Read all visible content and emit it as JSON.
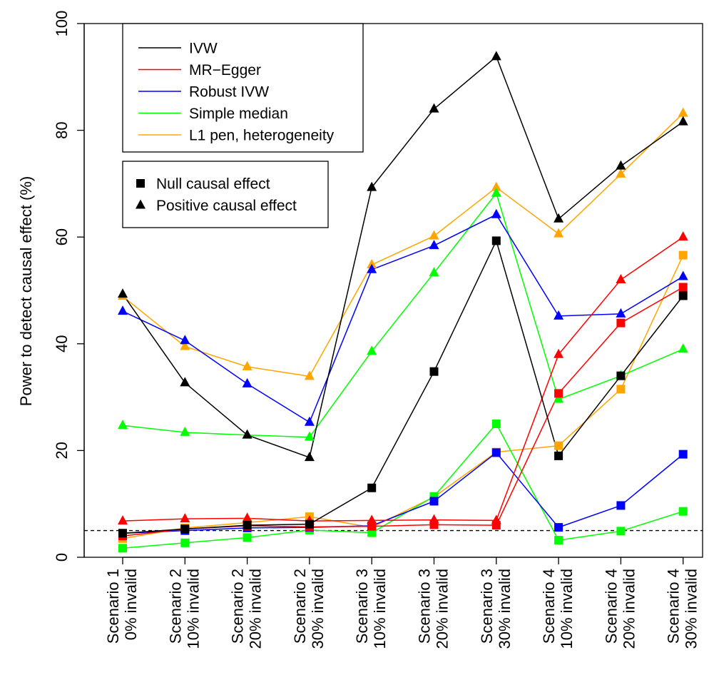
{
  "chart_data": {
    "type": "line",
    "title": "",
    "xlabel": "",
    "ylabel": "Power to detect causal effect (%)",
    "ylim": [
      0,
      100
    ],
    "yticks": [
      0,
      20,
      40,
      60,
      80,
      100
    ],
    "reference_line": 5,
    "categories": [
      [
        "Scenario 1",
        "0% invalid"
      ],
      [
        "Scenario 2",
        "10% invalid"
      ],
      [
        "Scenario 2",
        "20% invalid"
      ],
      [
        "Scenario 2",
        "30% invalid"
      ],
      [
        "Scenario 3",
        "10% invalid"
      ],
      [
        "Scenario 3",
        "20% invalid"
      ],
      [
        "Scenario 3",
        "30% invalid"
      ],
      [
        "Scenario 4",
        "10% invalid"
      ],
      [
        "Scenario 4",
        "20% invalid"
      ],
      [
        "Scenario 4",
        "30% invalid"
      ]
    ],
    "legend_position": "top-left",
    "methods": [
      {
        "name": "IVW",
        "color": "#000000",
        "null_effect": [
          4.5,
          5.3,
          6.0,
          6.2,
          13.0,
          34.8,
          59.3,
          19.0,
          34.0,
          49.0
        ],
        "positive_effect": [
          49.3,
          32.7,
          22.9,
          18.7,
          69.3,
          84.0,
          93.8,
          63.4,
          73.3,
          81.6
        ]
      },
      {
        "name": "MR−Egger",
        "color": "#ff0000",
        "null_effect": [
          4.0,
          5.3,
          5.9,
          5.7,
          5.8,
          6.1,
          6.0,
          30.7,
          43.9,
          50.6
        ],
        "positive_effect": [
          6.8,
          7.2,
          7.3,
          6.8,
          6.9,
          7.0,
          6.9,
          38.0,
          52.0,
          60.0
        ]
      },
      {
        "name": "Robust IVW",
        "color": "#0000ff",
        "null_effect": [
          4.5,
          5.0,
          5.5,
          5.6,
          5.9,
          10.5,
          19.6,
          5.6,
          9.7,
          19.3
        ],
        "positive_effect": [
          46.1,
          40.6,
          32.5,
          25.3,
          53.9,
          58.4,
          64.2,
          45.2,
          45.6,
          52.6
        ]
      },
      {
        "name": "Simple median",
        "color": "#00ff00",
        "null_effect": [
          1.7,
          2.7,
          3.7,
          5.1,
          4.6,
          11.4,
          25.0,
          3.2,
          4.9,
          8.6
        ],
        "positive_effect": [
          24.7,
          23.4,
          22.9,
          22.5,
          38.6,
          53.3,
          68.2,
          29.6,
          34.0,
          39.0
        ]
      },
      {
        "name": "L1 pen, heterogeneity",
        "color": "#ffa500",
        "null_effect": [
          3.5,
          5.5,
          6.5,
          7.6,
          5.6,
          11.3,
          19.7,
          20.9,
          31.5,
          56.6
        ],
        "positive_effect": [
          48.9,
          39.5,
          35.7,
          33.9,
          54.8,
          60.2,
          69.3,
          60.6,
          71.8,
          83.2
        ]
      }
    ],
    "shape_legend": [
      {
        "label": "Null causal effect",
        "marker": "square"
      },
      {
        "label": "Positive causal effect",
        "marker": "triangle"
      }
    ]
  }
}
